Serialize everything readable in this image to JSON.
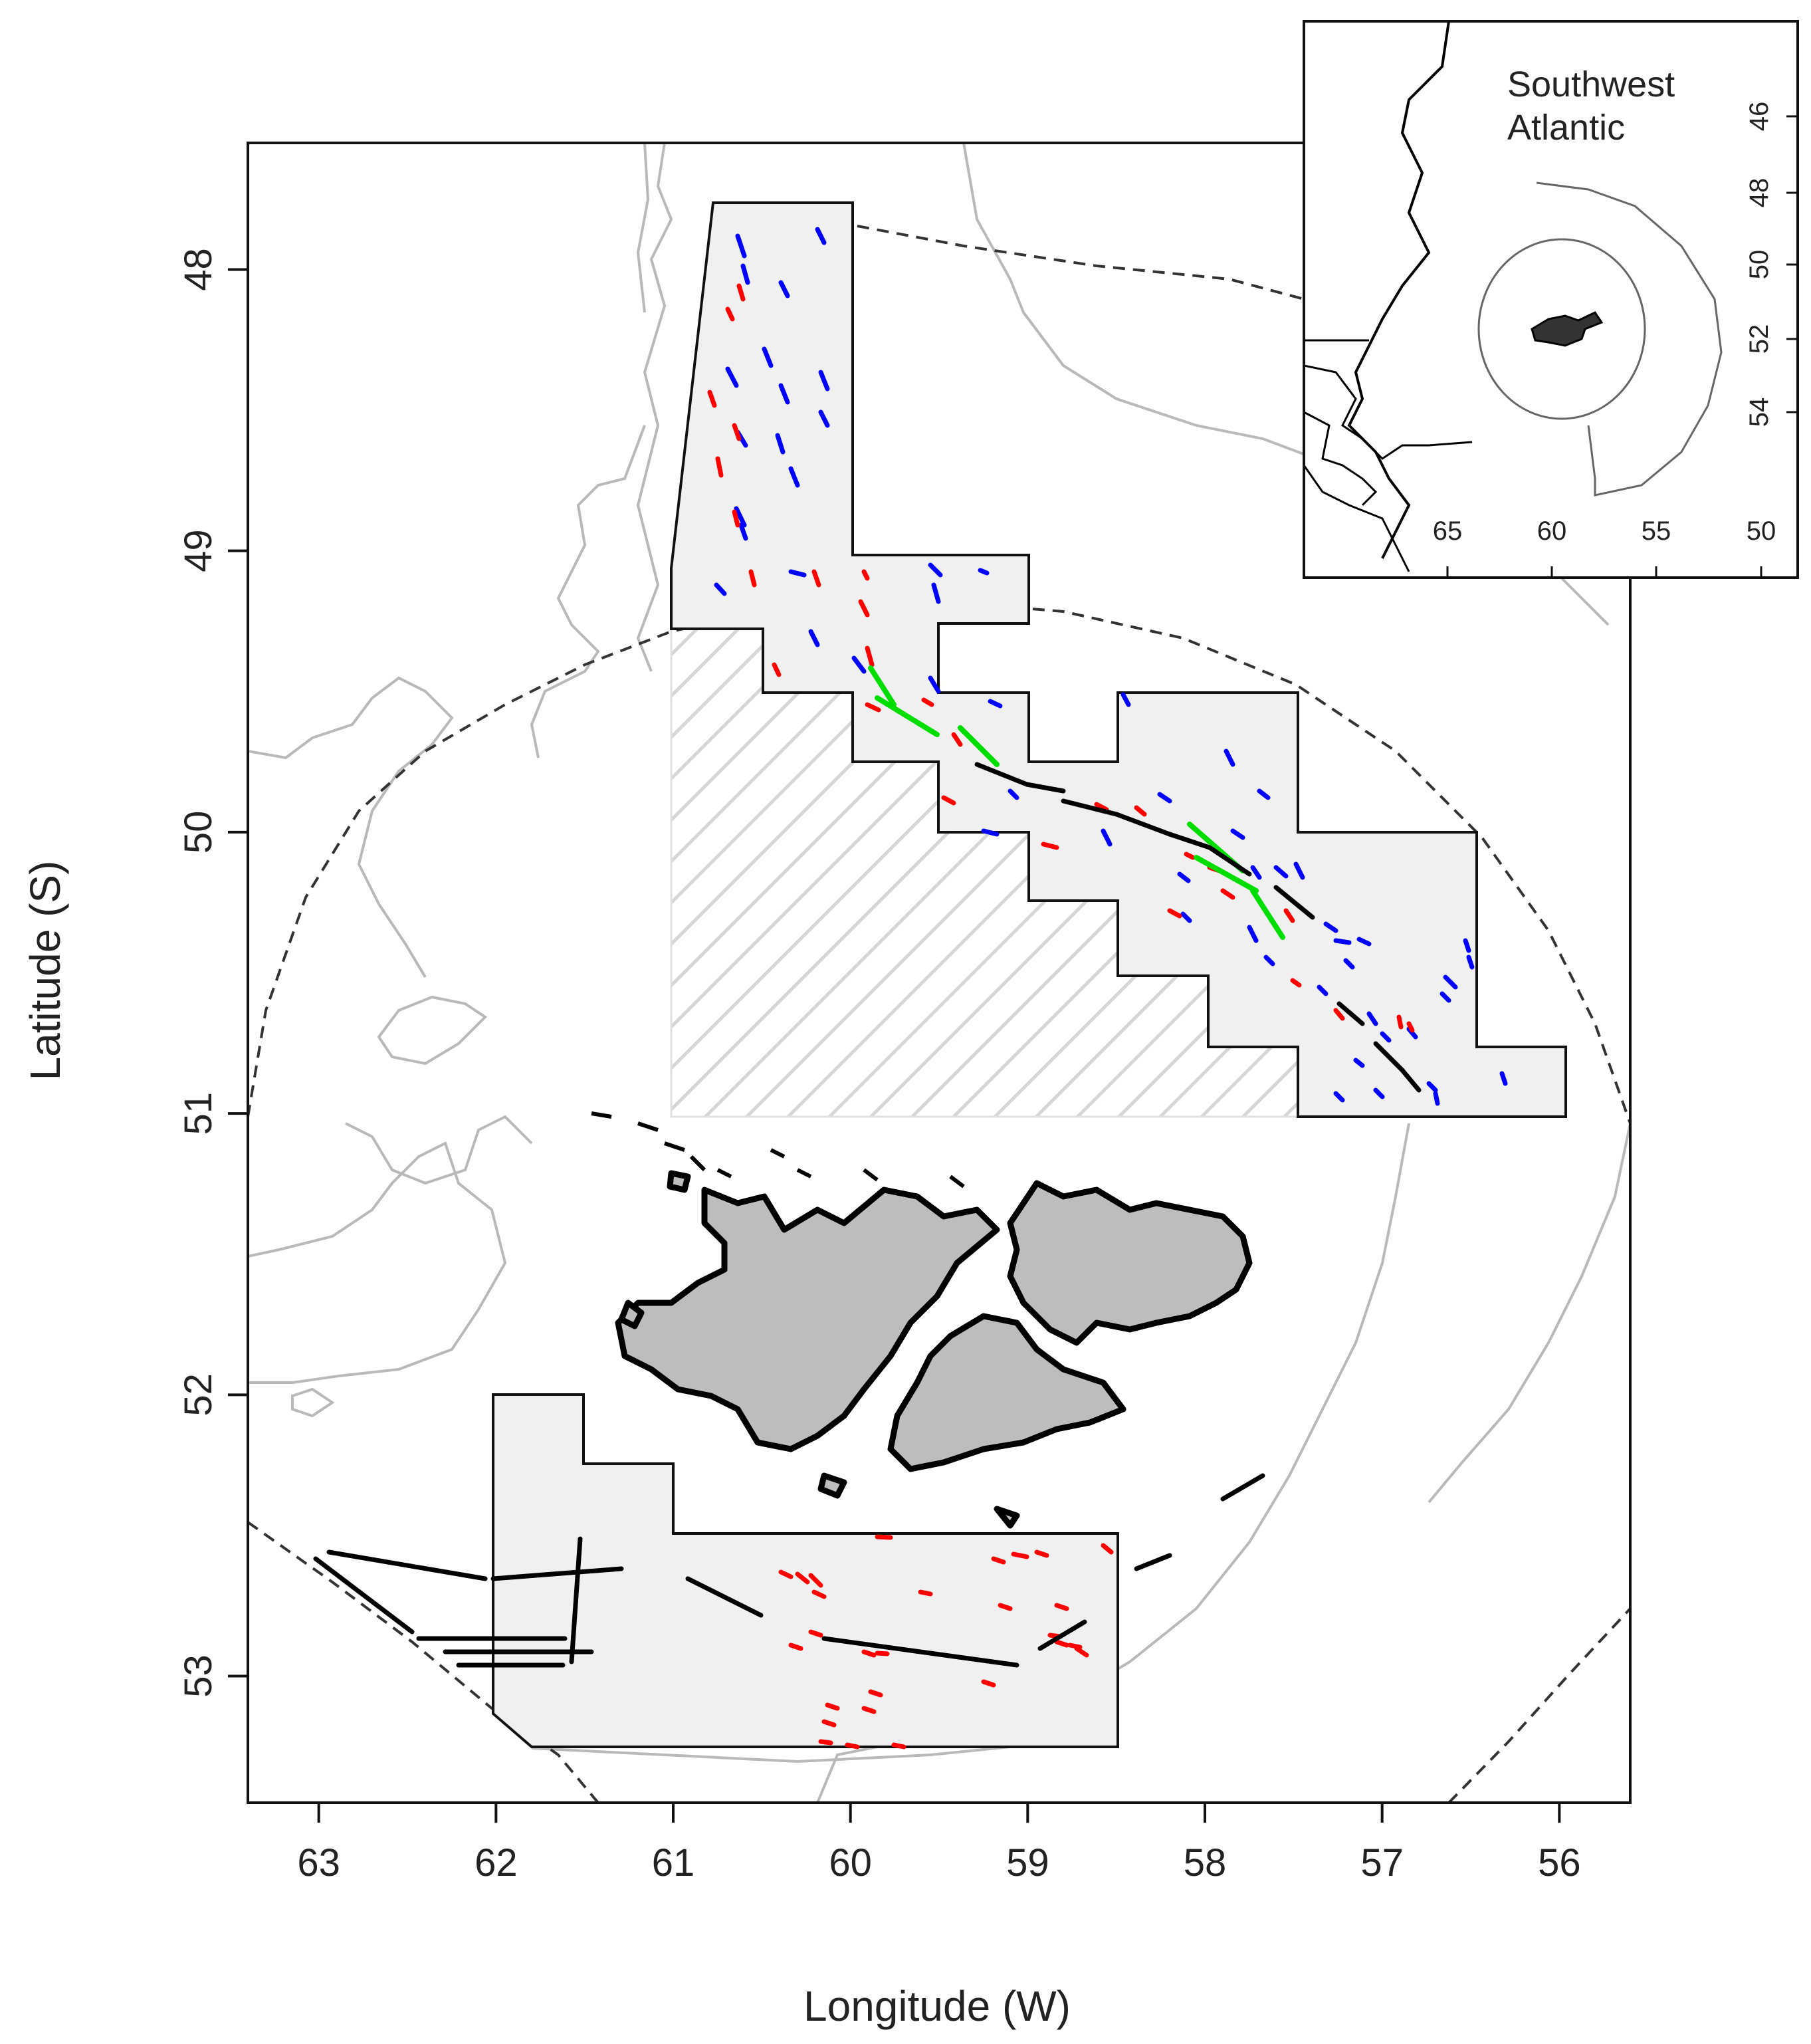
{
  "map": {
    "x_axis_label": "Longitude (W)",
    "y_axis_label": "Latitude (S)",
    "x_ticks": [
      "63",
      "62",
      "61",
      "60",
      "59",
      "58",
      "57",
      "56"
    ],
    "y_ticks": [
      "48",
      "49",
      "50",
      "51",
      "52",
      "53"
    ],
    "extent": {
      "lon_west": 63.4,
      "lon_east": 55.6,
      "lat_north": 47.55,
      "lat_south": 53.45
    },
    "colors": {
      "region_fill": "#f0f0f0",
      "region_stroke": "#111111",
      "hatch": "#d6d6d6",
      "land": "#bdbdbd",
      "land_outline": "#000000",
      "isobath": "#b9b9b9",
      "boundary": "#333333",
      "track_red": "#ff0000",
      "track_blue": "#0000ff",
      "track_green": "#00dd00",
      "track_black": "#000000"
    },
    "legend": "none",
    "track_colors": [
      "red",
      "blue",
      "green",
      "black"
    ]
  },
  "inset": {
    "title_line1": "Southwest",
    "title_line2": "Atlantic",
    "x_ticks": [
      "65",
      "60",
      "55",
      "50"
    ],
    "y_ticks": [
      "46",
      "48",
      "50",
      "52",
      "54"
    ]
  }
}
